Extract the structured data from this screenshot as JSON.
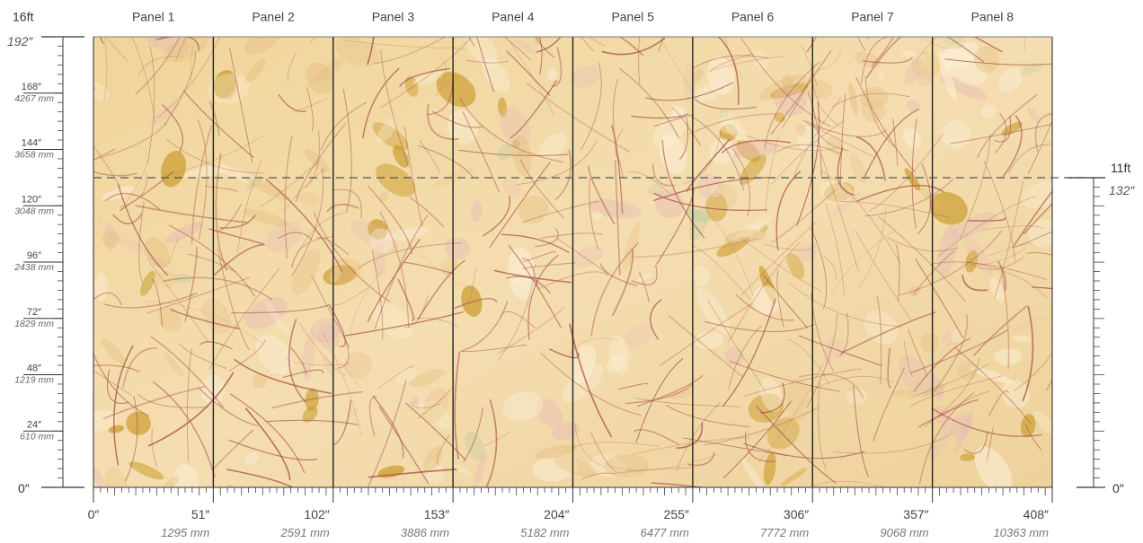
{
  "panels": [
    "Panel 1",
    "Panel 2",
    "Panel 3",
    "Panel 4",
    "Panel 5",
    "Panel 6",
    "Panel 7",
    "Panel 8"
  ],
  "left_axis": {
    "top_ft": "16ft",
    "top_in": "192″",
    "zero": "0″",
    "ticks": [
      {
        "value": 168,
        "in": "168″",
        "mm": "4267 mm"
      },
      {
        "value": 144,
        "in": "144″",
        "mm": "3658 mm"
      },
      {
        "value": 120,
        "in": "120″",
        "mm": "3048 mm"
      },
      {
        "value": 96,
        "in": "96″",
        "mm": "2438 mm"
      },
      {
        "value": 72,
        "in": "72″",
        "mm": "1829 mm"
      },
      {
        "value": 48,
        "in": "48″",
        "mm": "1219 mm"
      },
      {
        "value": 24,
        "in": "24″",
        "mm": "610 mm"
      }
    ],
    "max_in": 192
  },
  "right_axis": {
    "top_ft": "11ft",
    "top_in": "132″",
    "zero": "0″",
    "value_in": 132
  },
  "bottom_axis": {
    "ticks": [
      {
        "value": 0,
        "in": "0″",
        "mm": ""
      },
      {
        "value": 51,
        "in": "51″",
        "mm": "1295 mm"
      },
      {
        "value": 102,
        "in": "102″",
        "mm": "2591 mm"
      },
      {
        "value": 153,
        "in": "153″",
        "mm": "3886 mm"
      },
      {
        "value": 204,
        "in": "204″",
        "mm": "5182 mm"
      },
      {
        "value": 255,
        "in": "255″",
        "mm": "6477 mm"
      },
      {
        "value": 306,
        "in": "306″",
        "mm": "7772 mm"
      },
      {
        "value": 357,
        "in": "357″",
        "mm": "9068 mm"
      },
      {
        "value": 408,
        "in": "408″",
        "mm": "10363 mm"
      }
    ],
    "max_in": 408
  },
  "colors": {
    "wall_base": "#f1d9a3",
    "stroke_brown": "#a8564a",
    "ochre": "#c99a2a",
    "pink": "#e7b9b8",
    "green": "#a9c69a",
    "divider": "#222222",
    "dash": "#555555",
    "axis": "#333333"
  }
}
